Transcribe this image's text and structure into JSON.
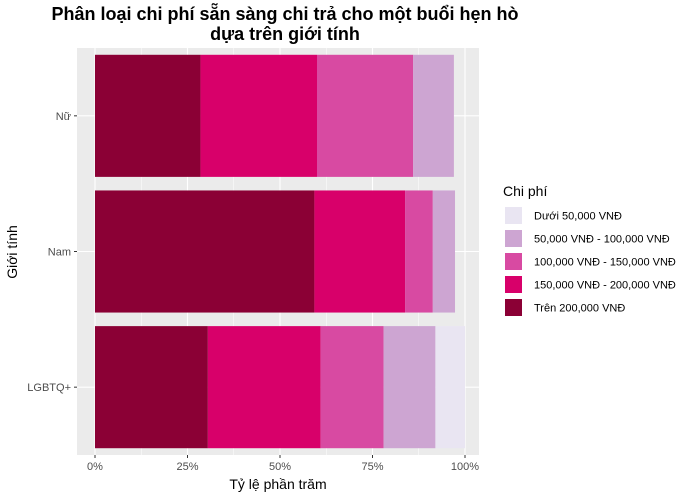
{
  "chart_data": {
    "type": "bar",
    "orientation": "horizontal",
    "stacked": true,
    "title": "Phân loại chi phí sẵn sàng chi trả cho một buổi hẹn hò dựa trên giới tính",
    "title_lines": [
      "Phân loại chi phí sẵn sàng chi trả cho một buổi hẹn hò",
      "dựa trên giới tính"
    ],
    "xlabel": "Tỷ lệ phần trăm",
    "ylabel": "Giới tính",
    "xlim": [
      0,
      1
    ],
    "x_ticks": [
      0,
      0.25,
      0.5,
      0.75,
      1.0
    ],
    "x_tick_labels": [
      "0%",
      "25%",
      "50%",
      "75%",
      "100%"
    ],
    "grid": true,
    "legend_title": "Chi phí",
    "legend_position": "right",
    "categories": [
      "Nữ",
      "Nam",
      "LGBTQ+"
    ],
    "series": [
      {
        "name": "Trên 200,000 VNĐ",
        "color": "#8B0035",
        "values": [
          0.285,
          0.593,
          0.305
        ]
      },
      {
        "name": "150,000 VNĐ - 200,000 VNĐ",
        "color": "#D8006A",
        "values": [
          0.315,
          0.245,
          0.305
        ]
      },
      {
        "name": "100,000 VNĐ - 150,000 VNĐ",
        "color": "#D84AA2",
        "values": [
          0.26,
          0.075,
          0.17
        ]
      },
      {
        "name": "50,000 VNĐ - 100,000 VNĐ",
        "color": "#CDA5D2",
        "values": [
          0.11,
          0.06,
          0.14
        ]
      },
      {
        "name": "Dưới 50,000 VNĐ",
        "color": "#E9E5F2",
        "values": [
          0.0,
          0.0,
          0.08
        ]
      }
    ],
    "legend_order": [
      "Dưới 50,000 VNĐ",
      "50,000 VNĐ - 100,000 VNĐ",
      "100,000 VNĐ - 150,000 VNĐ",
      "150,000 VNĐ - 200,000 VNĐ",
      "Trên 200,000 VNĐ"
    ],
    "panel_color": "#EBEBEB",
    "grid_color": "#FFFFFF"
  }
}
